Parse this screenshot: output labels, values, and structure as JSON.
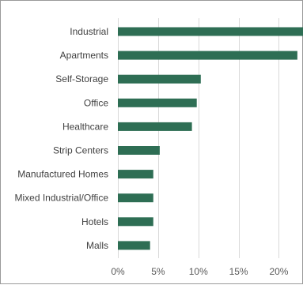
{
  "chart_data": {
    "type": "bar",
    "orientation": "horizontal",
    "categories": [
      "Industrial",
      "Apartments",
      "Self-Storage",
      "Office",
      "Healthcare",
      "Strip Centers",
      "Manufactured Homes",
      "Mixed Industrial/Office",
      "Hotels",
      "Malls"
    ],
    "values": [
      23.5,
      22.3,
      10.3,
      9.8,
      9.2,
      5.2,
      4.4,
      4.4,
      4.4,
      4.0
    ],
    "xlim": [
      0,
      23
    ],
    "xticks": [
      0,
      5,
      10,
      15,
      20
    ],
    "xtick_labels": [
      "0%",
      "5%",
      "10%",
      "15%",
      "20%"
    ],
    "grid": true,
    "bar_color": "#2e6e54",
    "title": "",
    "xlabel": "",
    "ylabel": ""
  }
}
